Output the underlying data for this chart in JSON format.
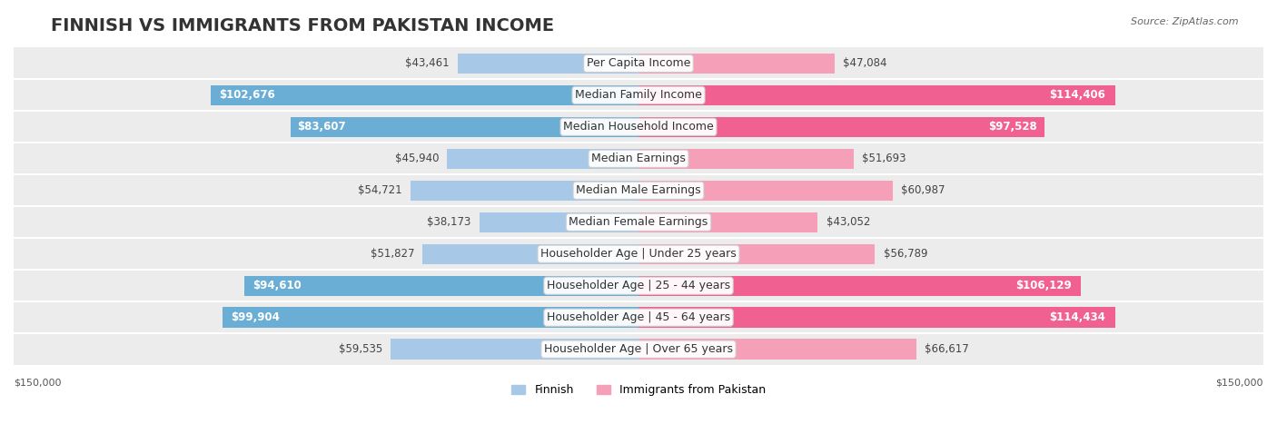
{
  "title": "FINNISH VS IMMIGRANTS FROM PAKISTAN INCOME",
  "source": "Source: ZipAtlas.com",
  "categories": [
    "Per Capita Income",
    "Median Family Income",
    "Median Household Income",
    "Median Earnings",
    "Median Male Earnings",
    "Median Female Earnings",
    "Householder Age | Under 25 years",
    "Householder Age | 25 - 44 years",
    "Householder Age | 45 - 64 years",
    "Householder Age | Over 65 years"
  ],
  "finnish_values": [
    43461,
    102676,
    83607,
    45940,
    54721,
    38173,
    51827,
    94610,
    99904,
    59535
  ],
  "pakistan_values": [
    47084,
    114406,
    97528,
    51693,
    60987,
    43052,
    56789,
    106129,
    114434,
    66617
  ],
  "finnish_color_light": "#a8c8e8",
  "finnish_color_dark": "#6aaed6",
  "pakistan_color_light": "#f5a0b8",
  "pakistan_color_dark": "#f06090",
  "max_value": 150000,
  "bg_color": "#ffffff",
  "row_bg_color": "#f0f0f0",
  "title_fontsize": 14,
  "label_fontsize": 9,
  "value_fontsize": 8.5,
  "axis_label_fontsize": 8
}
